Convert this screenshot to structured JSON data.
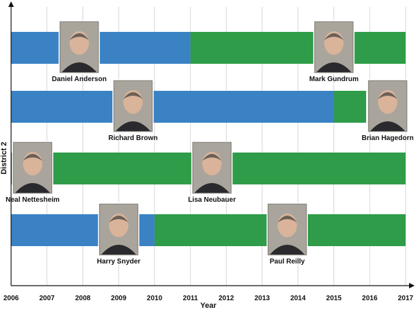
{
  "chart_data": {
    "type": "timeline",
    "xlabel": "Year",
    "ylabel": "District 2",
    "xlim": [
      2006,
      2017
    ],
    "x_ticks": [
      2006,
      2007,
      2008,
      2009,
      2010,
      2011,
      2012,
      2013,
      2014,
      2015,
      2016,
      2017
    ],
    "grid": "vertical",
    "colors": {
      "blue": "#3a82c4",
      "green": "#2e9c48"
    },
    "rows": [
      {
        "segments": [
          {
            "start": 2006.0,
            "end": 2011.0,
            "color": "blue"
          },
          {
            "start": 2011.0,
            "end": 2017.0,
            "color": "green"
          }
        ],
        "people": [
          {
            "name": "Daniel Anderson",
            "at": 2007.9
          },
          {
            "name": "Mark Gundrum",
            "at": 2015.0
          }
        ]
      },
      {
        "segments": [
          {
            "start": 2006.0,
            "end": 2015.0,
            "color": "blue"
          },
          {
            "start": 2015.0,
            "end": 2015.9,
            "color": "green"
          }
        ],
        "people": [
          {
            "name": "Richard Brown",
            "at": 2009.4
          },
          {
            "name": "Brian Hagedorn",
            "at": 2016.5
          }
        ]
      },
      {
        "segments": [
          {
            "start": 2006.0,
            "end": 2017.0,
            "color": "green"
          }
        ],
        "people": [
          {
            "name": "Neal Nettesheim",
            "at": 2006.6
          },
          {
            "name": "Lisa Neubauer",
            "at": 2011.6
          }
        ]
      },
      {
        "segments": [
          {
            "start": 2006.0,
            "end": 2010.0,
            "color": "blue"
          },
          {
            "start": 2010.0,
            "end": 2017.0,
            "color": "green"
          }
        ],
        "people": [
          {
            "name": "Harry Snyder",
            "at": 2009.0
          },
          {
            "name": "Paul Reilly",
            "at": 2013.7
          }
        ]
      }
    ]
  }
}
